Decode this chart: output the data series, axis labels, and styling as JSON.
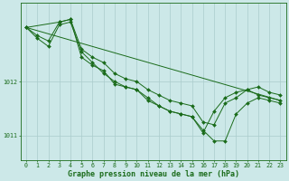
{
  "bg_color": "#cce8e8",
  "grid_color": "#aacccc",
  "line_color": "#1a6b1a",
  "xlabel": "Graphe pression niveau de la mer (hPa)",
  "xlabel_fontsize": 6.0,
  "tick_fontsize": 4.8,
  "ylim": [
    1010.55,
    1013.45
  ],
  "xlim": [
    -0.5,
    23.5
  ],
  "yticks": [
    1011,
    1012
  ],
  "xticks": [
    0,
    1,
    2,
    3,
    4,
    5,
    6,
    7,
    8,
    9,
    10,
    11,
    12,
    13,
    14,
    15,
    16,
    17,
    18,
    19,
    20,
    21,
    22,
    23
  ],
  "series1_x": [
    0,
    1,
    2,
    3,
    4,
    5,
    6,
    7,
    8,
    9,
    10,
    11,
    12,
    13,
    14,
    15,
    16,
    17,
    18,
    19,
    20,
    21,
    22,
    23
  ],
  "series1_y": [
    1013.0,
    1012.85,
    1012.75,
    1013.1,
    1013.15,
    1012.6,
    1012.45,
    1012.35,
    1012.15,
    1012.05,
    1012.0,
    1011.85,
    1011.75,
    1011.65,
    1011.6,
    1011.55,
    1011.25,
    1011.2,
    1011.6,
    1011.7,
    1011.85,
    1011.9,
    1011.8,
    1011.75
  ],
  "series2_x": [
    0,
    1,
    2,
    3,
    4,
    5,
    6,
    7,
    8,
    9,
    10,
    11,
    12,
    13,
    14,
    15,
    16,
    17,
    18,
    19,
    20,
    21,
    22,
    23
  ],
  "series2_y": [
    1013.0,
    1012.8,
    1012.65,
    1013.05,
    1013.1,
    1012.55,
    1012.35,
    1012.15,
    1012.0,
    1011.9,
    1011.85,
    1011.7,
    1011.55,
    1011.45,
    1011.4,
    1011.35,
    1011.1,
    1010.9,
    1010.9,
    1011.4,
    1011.6,
    1011.7,
    1011.65,
    1011.6
  ],
  "series3_x": [
    0,
    3,
    4,
    5,
    6,
    7,
    8,
    9,
    10,
    11,
    12,
    13,
    14,
    15,
    16,
    17,
    18,
    19,
    20,
    21,
    22,
    23
  ],
  "series3_y": [
    1013.0,
    1013.1,
    1013.15,
    1012.45,
    1012.3,
    1012.2,
    1011.95,
    1011.9,
    1011.85,
    1011.65,
    1011.55,
    1011.45,
    1011.4,
    1011.35,
    1011.05,
    1011.45,
    1011.7,
    1011.8,
    1011.85,
    1011.75,
    1011.7,
    1011.65
  ],
  "series4_x": [
    0,
    23
  ],
  "series4_y": [
    1013.0,
    1011.65
  ]
}
